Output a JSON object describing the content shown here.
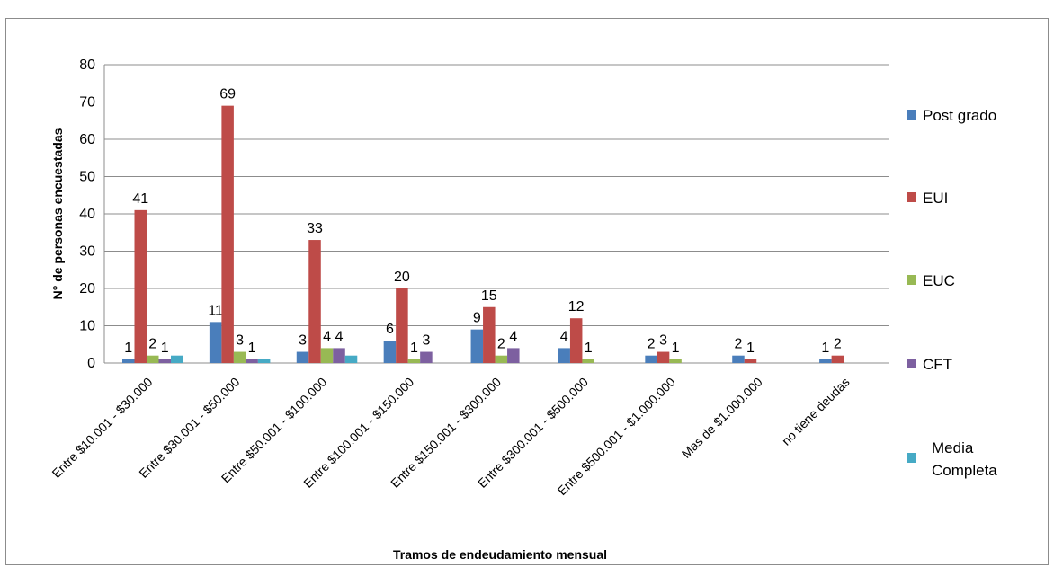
{
  "chart_data": {
    "type": "bar",
    "xlabel": "Tramos de endeudamiento mensual",
    "ylabel": "N° de personas encuestadas",
    "ylim": [
      0,
      80
    ],
    "yticks": [
      0,
      10,
      20,
      30,
      40,
      50,
      60,
      70,
      80
    ],
    "grid": true,
    "legend_position": "right",
    "categories": [
      "Entre $10.001 - $30.000",
      "Entre $30.001 - $50.000",
      "Entre $50.001 - $100.000",
      "Entre $100.001 - $150.000",
      "Entre $150.001 - $300.000",
      "Entre $300.001 - $500.000",
      "Entre $500.001 - $1.000.000",
      "Mas de $1.000.000",
      "no tiene deudas"
    ],
    "series": [
      {
        "name": "Post grado",
        "color": "#4a7ebb",
        "values": [
          1,
          11,
          3,
          6,
          9,
          4,
          2,
          2,
          1
        ]
      },
      {
        "name": "EUI",
        "color": "#be4b48",
        "values": [
          41,
          69,
          33,
          20,
          15,
          12,
          3,
          1,
          2
        ]
      },
      {
        "name": "EUC",
        "color": "#98b954",
        "values": [
          2,
          3,
          4,
          1,
          2,
          1,
          1,
          0,
          0
        ]
      },
      {
        "name": "CFT",
        "color": "#7d60a0",
        "values": [
          1,
          1,
          4,
          3,
          4,
          0,
          0,
          0,
          0
        ]
      },
      {
        "name": "Media Completa",
        "color": "#46aac5",
        "values": [
          2,
          1,
          2,
          0,
          0,
          0,
          0,
          0,
          0
        ]
      }
    ],
    "data_labels": [
      [
        "1",
        "41",
        "2",
        "1",
        ""
      ],
      [
        "11",
        "69",
        "3",
        "1",
        ""
      ],
      [
        "3",
        "33",
        "4",
        "4",
        ""
      ],
      [
        "6",
        "20",
        "1",
        "3",
        ""
      ],
      [
        "9",
        "15",
        "2",
        "4",
        ""
      ],
      [
        "4",
        "12",
        "1",
        "",
        ""
      ],
      [
        "2",
        "3",
        "1",
        "",
        ""
      ],
      [
        "2",
        "1",
        "",
        "",
        ""
      ],
      [
        "1",
        "2",
        "",
        "",
        ""
      ]
    ]
  }
}
